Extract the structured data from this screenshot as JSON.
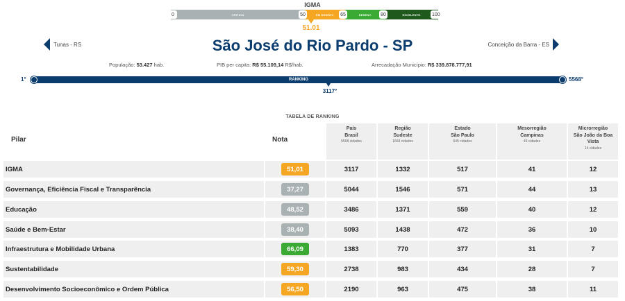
{
  "igma_scale": {
    "title": "IGMA",
    "segments": [
      {
        "label": "CRÍTICO",
        "color": "#a9b1b2"
      },
      {
        "label": "EM DESENV.",
        "color": "#f5a623"
      },
      {
        "label": "DESENV.",
        "color": "#3aaa35"
      },
      {
        "label": "EXCELENTE.",
        "color": "#1f5a1c"
      }
    ],
    "ticks": [
      "0",
      "50",
      "65",
      "80",
      "100"
    ],
    "score": "51.01",
    "score_color": "#f5a623"
  },
  "header": {
    "prev_city": "Tunas - RS",
    "next_city": "Conceição da Barra - ES",
    "city_title": "São José do Rio Pardo - SP",
    "title_color": "#0b3c6e"
  },
  "stats": {
    "population_label": "População:",
    "population_value": "53.427",
    "population_unit": "hab.",
    "pib_label": "PIB per capita:",
    "pib_value": "R$ 55.109,14",
    "pib_unit": "R$/hab.",
    "arrecadacao_label": "Arrecadação Município:",
    "arrecadacao_value": "R$ 339.878.777,91"
  },
  "ranking_bar": {
    "label": "RANKING",
    "min": "1°",
    "max": "5568°",
    "value": "3117°"
  },
  "table": {
    "title": "TABELA DE RANKING",
    "headers": {
      "pilar": "Pilar",
      "nota": "Nota",
      "cols": [
        {
          "line1": "País",
          "line2": "Brasil",
          "sub": "5568 cidades"
        },
        {
          "line1": "Região",
          "line2": "Sudeste",
          "sub": "1668 cidades"
        },
        {
          "line1": "Estado",
          "line2": "São Paulo",
          "sub": "645 cidades"
        },
        {
          "line1": "Mesorregião",
          "line2": "Campinas",
          "sub": "49 cidades"
        },
        {
          "line1": "Microrregião",
          "line2": "São João da Boa Vista",
          "sub": "14 cidades"
        }
      ]
    },
    "rows": [
      {
        "pilar": "IGMA",
        "nota": "51,01",
        "color": "#f5a623",
        "ranks": [
          "3117",
          "1332",
          "517",
          "41",
          "12"
        ]
      },
      {
        "pilar": "Governança, Eficiência Fiscal e Transparência",
        "nota": "37,27",
        "color": "#a9b1b2",
        "ranks": [
          "5044",
          "1546",
          "571",
          "44",
          "13"
        ]
      },
      {
        "pilar": "Educação",
        "nota": "48,52",
        "color": "#a9b1b2",
        "ranks": [
          "3486",
          "1371",
          "559",
          "40",
          "12"
        ]
      },
      {
        "pilar": "Saúde e Bem-Estar",
        "nota": "38,40",
        "color": "#a9b1b2",
        "ranks": [
          "5093",
          "1438",
          "472",
          "36",
          "10"
        ]
      },
      {
        "pilar": "Infraestrutura e Mobilidade Urbana",
        "nota": "66,09",
        "color": "#3aaa35",
        "ranks": [
          "1383",
          "770",
          "377",
          "31",
          "7"
        ]
      },
      {
        "pilar": "Sustentabilidade",
        "nota": "59,30",
        "color": "#f5a623",
        "ranks": [
          "2738",
          "983",
          "434",
          "28",
          "7"
        ]
      },
      {
        "pilar": "Desenvolvimento Socioeconômico e Ordem Pública",
        "nota": "56,50",
        "color": "#f5a623",
        "ranks": [
          "2190",
          "963",
          "475",
          "38",
          "11"
        ]
      }
    ]
  }
}
